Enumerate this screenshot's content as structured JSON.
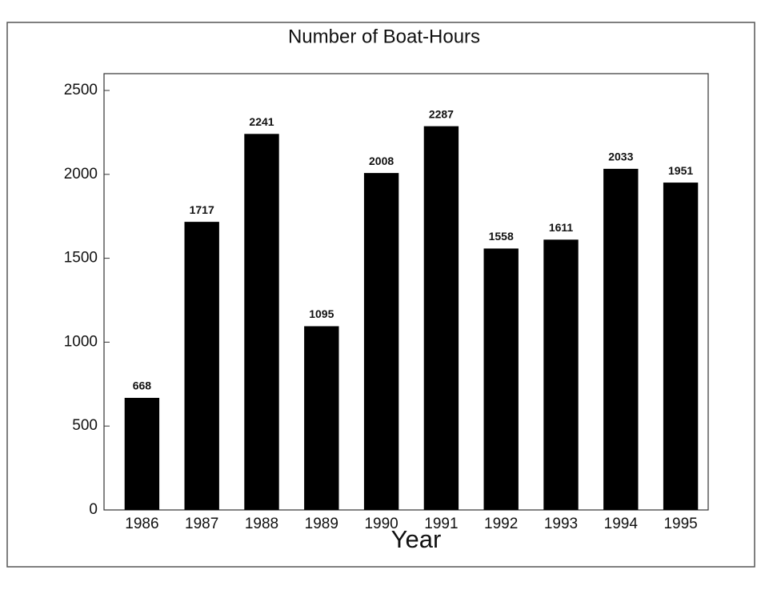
{
  "chart_data": {
    "type": "bar",
    "title": "Number of Boat-Hours",
    "x_label": "Year",
    "categories": [
      "1986",
      "1987",
      "1988",
      "1989",
      "1990",
      "1991",
      "1992",
      "1993",
      "1994",
      "1995"
    ],
    "values": [
      668,
      1717,
      2241,
      1095,
      2008,
      2287,
      1558,
      1611,
      2033,
      1951
    ],
    "color": "#000000",
    "ylim": [
      0,
      2500
    ],
    "yticks": [
      0,
      500,
      1000,
      1500,
      2000,
      2500
    ],
    "grid": false
  }
}
